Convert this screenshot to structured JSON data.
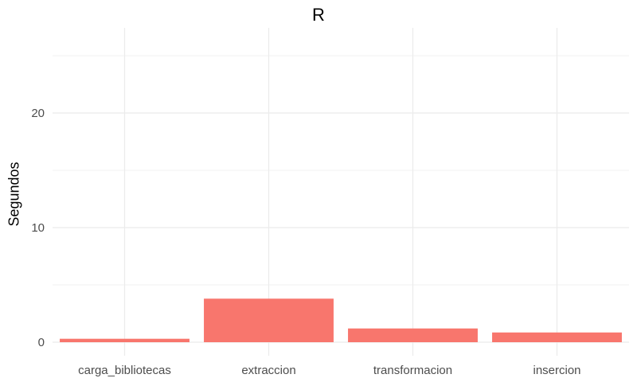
{
  "chart_data": {
    "type": "bar",
    "title": "R",
    "xlabel": "",
    "ylabel": "Segundos",
    "categories": [
      "carga_bibliotecas",
      "extraccion",
      "transformacion",
      "insercion"
    ],
    "values": [
      0.3,
      3.8,
      1.2,
      0.85
    ],
    "ylim": [
      0,
      27
    ],
    "yticks": [
      0,
      10,
      20
    ],
    "grid": true,
    "bar_color": "#F8766D"
  }
}
